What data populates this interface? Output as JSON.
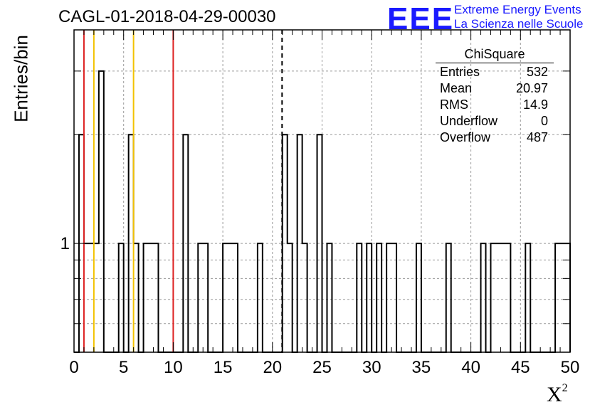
{
  "chart_data": {
    "type": "histogram",
    "title": "CAGL-01-2018-04-29-00030",
    "xlabel": "X",
    "xlabel_sup": "2",
    "ylabel": "Entries/bin",
    "xlim": [
      0,
      50
    ],
    "ylim": [
      0.5,
      3.9
    ],
    "yscale": "log",
    "grid": true,
    "bin_width": 0.5,
    "x_ticks": [
      "0",
      "5",
      "10",
      "15",
      "20",
      "25",
      "30",
      "35",
      "40",
      "45",
      "50"
    ],
    "y_ticks": [
      "1"
    ],
    "bins": [
      {
        "x": 0.5,
        "y": 2
      },
      {
        "x": 1.0,
        "y": 1
      },
      {
        "x": 1.5,
        "y": 1
      },
      {
        "x": 2.0,
        "y": 1
      },
      {
        "x": 2.5,
        "y": 3
      },
      {
        "x": 4.5,
        "y": 1
      },
      {
        "x": 5.5,
        "y": 2
      },
      {
        "x": 6.0,
        "y": 1
      },
      {
        "x": 7.0,
        "y": 1
      },
      {
        "x": 7.5,
        "y": 1
      },
      {
        "x": 8.0,
        "y": 1
      },
      {
        "x": 11.0,
        "y": 2
      },
      {
        "x": 12.5,
        "y": 1
      },
      {
        "x": 13.0,
        "y": 1
      },
      {
        "x": 15.0,
        "y": 1
      },
      {
        "x": 15.5,
        "y": 1
      },
      {
        "x": 16.0,
        "y": 1
      },
      {
        "x": 18.5,
        "y": 1
      },
      {
        "x": 21.0,
        "y": 2
      },
      {
        "x": 21.5,
        "y": 1
      },
      {
        "x": 22.5,
        "y": 2
      },
      {
        "x": 23.0,
        "y": 1
      },
      {
        "x": 24.5,
        "y": 2
      },
      {
        "x": 25.5,
        "y": 1
      },
      {
        "x": 28.5,
        "y": 1
      },
      {
        "x": 29.5,
        "y": 1
      },
      {
        "x": 30.5,
        "y": 1
      },
      {
        "x": 31.5,
        "y": 1
      },
      {
        "x": 32.0,
        "y": 1
      },
      {
        "x": 34.5,
        "y": 1
      },
      {
        "x": 37.5,
        "y": 1
      },
      {
        "x": 41.0,
        "y": 1
      },
      {
        "x": 42.0,
        "y": 1
      },
      {
        "x": 42.5,
        "y": 1
      },
      {
        "x": 43.0,
        "y": 1
      },
      {
        "x": 43.5,
        "y": 1
      },
      {
        "x": 45.5,
        "y": 1
      },
      {
        "x": 48.5,
        "y": 1
      },
      {
        "x": 49.0,
        "y": 1
      },
      {
        "x": 49.5,
        "y": 1
      }
    ],
    "reference_lines": [
      {
        "x": 1,
        "color": "#dd2222",
        "style": "solid"
      },
      {
        "x": 2,
        "color": "#f2c200",
        "style": "solid"
      },
      {
        "x": 6,
        "color": "#f2c200",
        "style": "solid"
      },
      {
        "x": 10,
        "color": "#dd2222",
        "style": "solid"
      },
      {
        "x": 20.97,
        "color": "#000000",
        "style": "dashed"
      }
    ],
    "stats_box": {
      "title": "ChiSquare",
      "rows": [
        {
          "label": "Entries",
          "value": "532"
        },
        {
          "label": "Mean",
          "value": "20.97"
        },
        {
          "label": "RMS",
          "value": "14.9"
        },
        {
          "label": "Underflow",
          "value": "0"
        },
        {
          "label": "Overflow",
          "value": "487"
        }
      ]
    }
  },
  "logo": {
    "mark": "EEE",
    "line1": "Extreme Energy Events",
    "line2": "La Scienza nelle Scuole"
  }
}
